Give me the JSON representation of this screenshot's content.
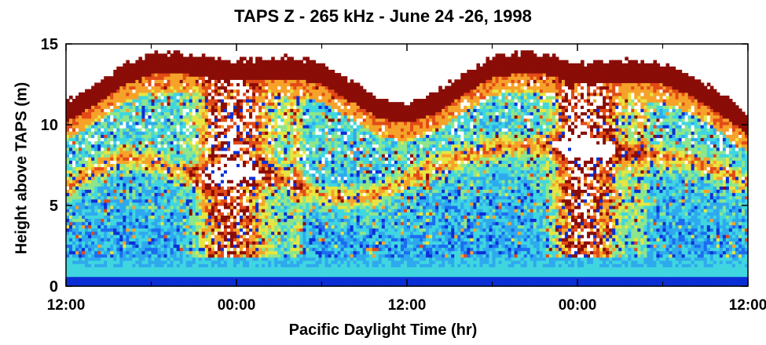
{
  "chart_data": {
    "type": "heatmap",
    "title": "TAPS Z - 265 kHz - June 24 -26, 1998",
    "xlabel": "Pacific Daylight Time (hr)",
    "ylabel": "Height above TAPS (m)",
    "ylim": [
      0,
      15
    ],
    "yticks": [
      0,
      5,
      10,
      15
    ],
    "xlim": [
      0,
      48
    ],
    "xticks": [
      0,
      12,
      24,
      36,
      48
    ],
    "xticklabels": [
      "12:00",
      "00:00",
      "12:00",
      "00:00",
      "12:00"
    ],
    "xminor_ticks": [
      6,
      18,
      30,
      42
    ],
    "surface_height": {
      "x": [
        0,
        2,
        4,
        6,
        8,
        10,
        12,
        14,
        16,
        18,
        20,
        22,
        24,
        26,
        28,
        30,
        32,
        34,
        36,
        38,
        40,
        42,
        44,
        46,
        48
      ],
      "y": [
        11.3,
        12.3,
        13.5,
        14.2,
        14.3,
        14.0,
        13.8,
        13.9,
        14.0,
        13.6,
        12.6,
        11.5,
        11.2,
        11.8,
        13.0,
        14.0,
        14.3,
        14.2,
        13.6,
        13.7,
        13.8,
        13.6,
        12.9,
        11.8,
        10.5
      ]
    },
    "thermocline_height": {
      "x": [
        0,
        2,
        4,
        6,
        8,
        10,
        12,
        14,
        16,
        18,
        20,
        22,
        24,
        26,
        28,
        30,
        32,
        34,
        36,
        38,
        40,
        42,
        44,
        46,
        48
      ],
      "y": [
        6.0,
        7.2,
        8.0,
        7.8,
        7.0,
        6.8,
        7.2,
        7.0,
        6.4,
        5.6,
        5.4,
        5.8,
        6.6,
        7.4,
        8.1,
        8.5,
        8.7,
        8.8,
        8.5,
        8.4,
        8.2,
        8.0,
        7.8,
        7.2,
        6.4
      ]
    },
    "colormap": [
      "#0b2fd6",
      "#1c6cf0",
      "#2ea9ee",
      "#40d6e0",
      "#8ee68a",
      "#e7e640",
      "#f6a22a",
      "#e24b16",
      "#8b0d07"
    ]
  }
}
